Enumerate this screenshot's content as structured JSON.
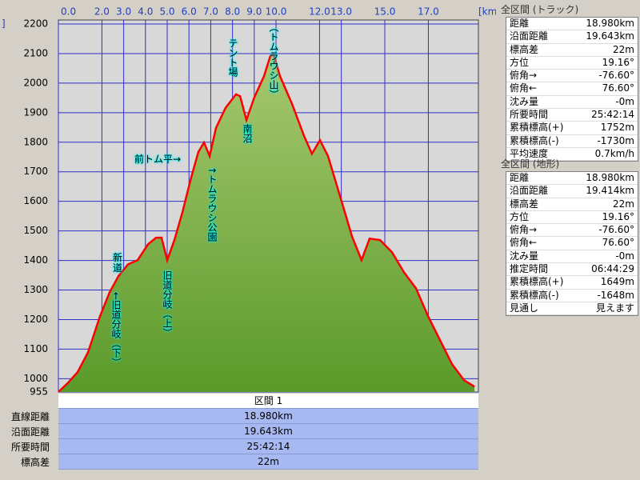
{
  "chart_data": {
    "type": "area",
    "y_unit": "]",
    "x_label": "[km]",
    "x": [
      0,
      0.44,
      0.88,
      1.36,
      1.91,
      2.35,
      2.76,
      3.2,
      3.64,
      4.12,
      4.49,
      4.74,
      5.0,
      5.33,
      5.7,
      6.07,
      6.43,
      6.69,
      6.95,
      7.24,
      7.68,
      8.16,
      8.35,
      8.64,
      9.0,
      9.45,
      9.74,
      9.89,
      10.18,
      10.74,
      11.29,
      11.65,
      12.02,
      12.39,
      12.94,
      13.49,
      13.93,
      14.3,
      14.78,
      15.33,
      15.88,
      16.43,
      16.99,
      17.54,
      18.09,
      18.64,
      19.12
    ],
    "series": [
      {
        "color": "#ff0000",
        "fill": "#5a9a2a",
        "values": [
          955,
          986,
          1022,
          1089,
          1211,
          1292,
          1347,
          1387,
          1401,
          1455,
          1477,
          1477,
          1401,
          1469,
          1563,
          1672,
          1767,
          1799,
          1753,
          1848,
          1916,
          1962,
          1956,
          1875,
          1951,
          2024,
          2092,
          2097,
          2024,
          1929,
          1821,
          1761,
          1807,
          1753,
          1618,
          1482,
          1401,
          1474,
          1469,
          1428,
          1360,
          1306,
          1211,
          1130,
          1049,
          995,
          973
        ]
      }
    ],
    "xlim": [
      0,
      19.3
    ],
    "ylim": [
      955,
      2200
    ],
    "xticks": [
      {
        "value": 0,
        "label": "0.0"
      },
      {
        "value": 2,
        "label": "2.0"
      },
      {
        "value": 3,
        "label": "3.0"
      },
      {
        "value": 4,
        "label": "4.0"
      },
      {
        "value": 5,
        "label": "5.0"
      },
      {
        "value": 6,
        "label": "6.0"
      },
      {
        "value": 7,
        "label": "7.0"
      },
      {
        "value": 8,
        "label": "8.0"
      },
      {
        "value": 9,
        "label": "9.0"
      },
      {
        "value": 10,
        "label": "10.0"
      },
      {
        "value": 12,
        "label": "12.0"
      },
      {
        "value": 13,
        "label": "13.0"
      },
      {
        "value": 15,
        "label": "15.0"
      },
      {
        "value": 17,
        "label": "17.0"
      }
    ],
    "yticks": [
      955,
      1000,
      1100,
      1200,
      1300,
      1400,
      1500,
      1600,
      1700,
      1800,
      1900,
      2000,
      2100,
      2200
    ],
    "grid": true,
    "annotations": [
      "←旧道分岐（下）",
      "新道",
      "旧道分岐（上）",
      "前トム平→",
      "↑トムラウシ公園",
      "テント場",
      "南沼",
      "（トムラウシ山）"
    ]
  },
  "segment": {
    "header": "区間 1",
    "rows": [
      [
        "直線距離",
        "18.980km"
      ],
      [
        "沿面距離",
        "19.643km"
      ],
      [
        "所要時間",
        "25:42:14"
      ],
      [
        "標高差",
        "22m"
      ]
    ]
  },
  "panels": [
    {
      "title": "全区間 (トラック)",
      "rows": [
        [
          "距離",
          "18.980km"
        ],
        [
          "沿面距離",
          "19.643km"
        ],
        [
          "標高差",
          "22m"
        ],
        [
          "方位",
          "19.16°"
        ],
        [
          "俯角→",
          "-76.60°"
        ],
        [
          "俯角←",
          "76.60°"
        ],
        [
          "沈み量",
          "-0m"
        ],
        [
          "所要時間",
          "25:42:14"
        ],
        [
          "累積標高(+)",
          "1752m"
        ],
        [
          "累積標高(-)",
          "-1730m"
        ],
        [
          "平均速度",
          "0.7km/h"
        ]
      ]
    },
    {
      "title": "全区間 (地形)",
      "rows": [
        [
          "距離",
          "18.980km"
        ],
        [
          "沿面距離",
          "19.414km"
        ],
        [
          "標高差",
          "22m"
        ],
        [
          "方位",
          "19.16°"
        ],
        [
          "俯角→",
          "-76.60°"
        ],
        [
          "俯角←",
          "76.60°"
        ],
        [
          "沈み量",
          "-0m"
        ],
        [
          "推定時間",
          "06:44:29"
        ],
        [
          "累積標高(+)",
          "1649m"
        ],
        [
          "累積標高(-)",
          "-1648m"
        ],
        [
          "見通し",
          "見えます"
        ]
      ]
    }
  ]
}
